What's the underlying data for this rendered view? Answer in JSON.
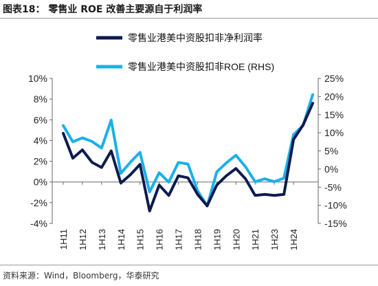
{
  "title": "图表18：  零售业 ROE 改善主要源自于利润率",
  "source": "资料来源：Wind，Bloomberg，华泰研究",
  "chart_data": {
    "type": "line",
    "categories": [
      "1H11",
      "2H11",
      "1H12",
      "2H12",
      "1H13",
      "2H13",
      "1H14",
      "2H14",
      "1H15",
      "2H15",
      "1H16",
      "2H16",
      "1H17",
      "2H17",
      "1H18",
      "2H18",
      "1H19",
      "2H19",
      "1H20",
      "2H20",
      "1H21",
      "2H21",
      "1H23",
      "2H23",
      "1H24"
    ],
    "x_tick_labels": [
      "1H11",
      "1H12",
      "1H13",
      "1H14",
      "1H15",
      "1H16",
      "1H17",
      "1H18",
      "1H19",
      "1H20",
      "1H21",
      "1H23",
      "1H24"
    ],
    "x_tick_indices": [
      0,
      2,
      4,
      6,
      8,
      10,
      12,
      14,
      16,
      18,
      20,
      22,
      24
    ],
    "series": [
      {
        "name": "零售业港美中资股扣非净利润率",
        "axis": "left",
        "color": "#0d1b4d",
        "values": [
          4.7,
          2.3,
          3.1,
          1.9,
          1.4,
          3.0,
          -0.1,
          0.7,
          1.7,
          -2.8,
          -0.3,
          -1.3,
          0.6,
          0.4,
          -1.2,
          -2.3,
          -0.3,
          0.6,
          1.3,
          0.3,
          -1.3,
          -1.2,
          -1.3,
          -1.2,
          4.1
        ]
      },
      {
        "name": "零售业港美中资股扣非ROE (RHS)",
        "axis": "right",
        "color": "#1ab0ea",
        "values": [
          12.0,
          7.5,
          8.6,
          7.6,
          5.8,
          13.5,
          -1.2,
          1.9,
          4.6,
          -6.3,
          -1.0,
          -3.6,
          1.8,
          1.4,
          -6.0,
          -10.2,
          -0.8,
          1.7,
          3.8,
          0.6,
          -3.5,
          -2.7,
          -3.5,
          -2.5,
          9.5
        ]
      }
    ],
    "extra_points": [
      {
        "series_index": 0,
        "values_after": [
          5.5,
          7.6
        ]
      },
      {
        "series_index": 1,
        "values_after": [
          12.0,
          20.5
        ]
      }
    ],
    "left_axis": {
      "min": -4,
      "max": 10,
      "step": 2,
      "format": "percent"
    },
    "right_axis": {
      "min": -15,
      "max": 25,
      "step": 5,
      "format": "percent"
    },
    "legend": "top-center",
    "grid": false
  }
}
